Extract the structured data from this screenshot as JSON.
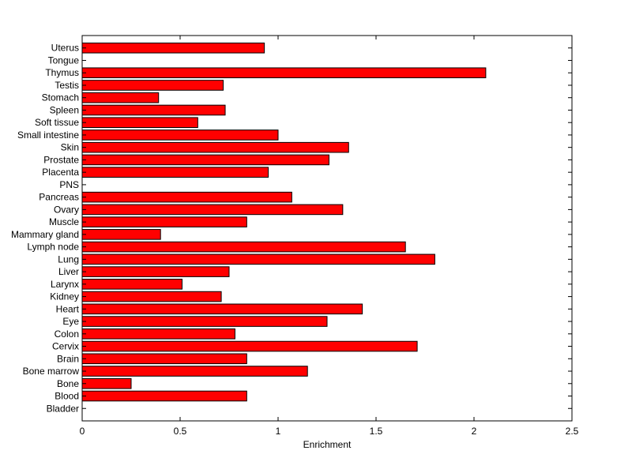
{
  "chart_data": {
    "type": "bar",
    "orientation": "horizontal",
    "title": "",
    "xlabel": "Enrichment",
    "ylabel": "",
    "xlim": [
      0,
      2.5
    ],
    "xticks": [
      0,
      0.5,
      1,
      1.5,
      2,
      2.5
    ],
    "xtick_labels": [
      "0",
      "0.5",
      "1",
      "1.5",
      "2",
      "2.5"
    ],
    "grid": false,
    "bar_color": "#ff0000",
    "categories": [
      "Bladder",
      "Blood",
      "Bone",
      "Bone marrow",
      "Brain",
      "Cervix",
      "Colon",
      "Eye",
      "Heart",
      "Kidney",
      "Larynx",
      "Liver",
      "Lung",
      "Lymph node",
      "Mammary gland",
      "Muscle",
      "Ovary",
      "Pancreas",
      "PNS",
      "Placenta",
      "Prostate",
      "Skin",
      "Small intestine",
      "Soft tissue",
      "Spleen",
      "Stomach",
      "Testis",
      "Thymus",
      "Tongue",
      "Uterus"
    ],
    "values": [
      0,
      0.84,
      0.25,
      1.15,
      0.84,
      1.71,
      0.78,
      1.25,
      1.43,
      0.71,
      0.51,
      0.75,
      1.8,
      1.65,
      0.4,
      0.84,
      1.33,
      1.07,
      0,
      0.95,
      1.26,
      1.36,
      1.0,
      0.59,
      0.73,
      0.39,
      0.72,
      2.06,
      0,
      0.93
    ]
  }
}
